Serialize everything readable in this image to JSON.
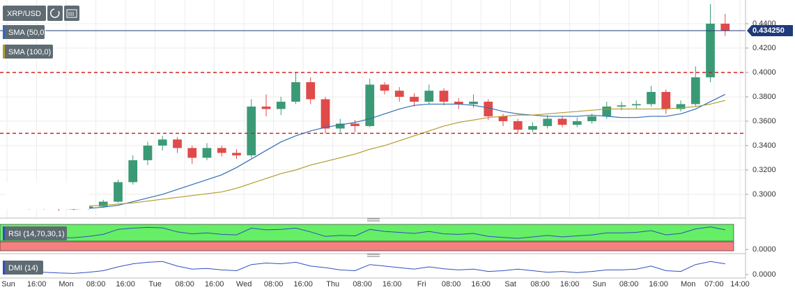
{
  "chart_data": [
    {
      "type": "candlestick",
      "title": "XRP/USD",
      "x": [
        10,
        14,
        18,
        22,
        26,
        30,
        34,
        38,
        42,
        46,
        50,
        54,
        58,
        62,
        66,
        70,
        74,
        78,
        82,
        86,
        90,
        94,
        98,
        102,
        106,
        110,
        114,
        118,
        122,
        126,
        130,
        134,
        138,
        142,
        146,
        150,
        154,
        158,
        162,
        166,
        170,
        174,
        178,
        182,
        186,
        190,
        194,
        198,
        202
      ],
      "open": [
        0.2905,
        0.29,
        0.289,
        0.2895,
        0.288,
        0.2885,
        0.29,
        0.294,
        0.31,
        0.328,
        0.34,
        0.345,
        0.338,
        0.33,
        0.338,
        0.334,
        0.332,
        0.372,
        0.37,
        0.376,
        0.392,
        0.378,
        0.354,
        0.358,
        0.356,
        0.39,
        0.385,
        0.38,
        0.376,
        0.385,
        0.376,
        0.374,
        0.376,
        0.364,
        0.36,
        0.353,
        0.356,
        0.362,
        0.357,
        0.36,
        0.364,
        0.372,
        0.373,
        0.374,
        0.384,
        0.37,
        0.374,
        0.396,
        0.44
      ],
      "high": [
        0.2925,
        0.2915,
        0.291,
        0.2905,
        0.29,
        0.2915,
        0.2955,
        0.312,
        0.332,
        0.343,
        0.348,
        0.347,
        0.34,
        0.342,
        0.34,
        0.337,
        0.378,
        0.382,
        0.38,
        0.4,
        0.396,
        0.38,
        0.362,
        0.361,
        0.395,
        0.392,
        0.388,
        0.383,
        0.39,
        0.387,
        0.379,
        0.382,
        0.378,
        0.366,
        0.362,
        0.359,
        0.365,
        0.364,
        0.363,
        0.366,
        0.376,
        0.376,
        0.377,
        0.389,
        0.386,
        0.377,
        0.405,
        0.456,
        0.448
      ],
      "low": [
        0.2885,
        0.2875,
        0.2875,
        0.2865,
        0.287,
        0.2875,
        0.289,
        0.293,
        0.308,
        0.324,
        0.336,
        0.334,
        0.325,
        0.328,
        0.331,
        0.329,
        0.33,
        0.364,
        0.365,
        0.374,
        0.374,
        0.35,
        0.351,
        0.351,
        0.355,
        0.382,
        0.376,
        0.372,
        0.374,
        0.373,
        0.37,
        0.371,
        0.361,
        0.356,
        0.35,
        0.351,
        0.354,
        0.355,
        0.355,
        0.358,
        0.362,
        0.369,
        0.37,
        0.372,
        0.366,
        0.368,
        0.372,
        0.392,
        0.43
      ],
      "close": [
        0.29,
        0.289,
        0.2895,
        0.288,
        0.2885,
        0.29,
        0.294,
        0.31,
        0.328,
        0.34,
        0.345,
        0.338,
        0.33,
        0.338,
        0.334,
        0.332,
        0.372,
        0.37,
        0.376,
        0.392,
        0.378,
        0.354,
        0.358,
        0.356,
        0.39,
        0.385,
        0.38,
        0.376,
        0.385,
        0.376,
        0.374,
        0.376,
        0.364,
        0.36,
        0.353,
        0.356,
        0.362,
        0.357,
        0.36,
        0.364,
        0.372,
        0.373,
        0.374,
        0.384,
        0.37,
        0.374,
        0.396,
        0.44,
        0.4342
      ],
      "up_color": "#3b9a76",
      "down_color": "#e04a4a",
      "series": [
        {
          "name": "SMA (50,0)",
          "color": "#2f6db5",
          "values": [
            0.29,
            0.2895,
            0.289,
            0.2885,
            0.288,
            0.2885,
            0.2895,
            0.291,
            0.294,
            0.297,
            0.3,
            0.304,
            0.308,
            0.312,
            0.316,
            0.322,
            0.329,
            0.336,
            0.343,
            0.348,
            0.352,
            0.355,
            0.357,
            0.359,
            0.362,
            0.366,
            0.37,
            0.373,
            0.374,
            0.374,
            0.374,
            0.373,
            0.371,
            0.368,
            0.366,
            0.365,
            0.364,
            0.364,
            0.364,
            0.365,
            0.364,
            0.363,
            0.363,
            0.364,
            0.364,
            0.366,
            0.37,
            0.376,
            0.382
          ]
        },
        {
          "name": "SMA (100,0)",
          "color": "#b39a2a",
          "values": [
            0.293,
            0.292,
            0.2915,
            0.291,
            0.2905,
            0.2905,
            0.291,
            0.292,
            0.293,
            0.2945,
            0.296,
            0.2975,
            0.299,
            0.3005,
            0.302,
            0.305,
            0.309,
            0.313,
            0.317,
            0.32,
            0.324,
            0.327,
            0.33,
            0.333,
            0.337,
            0.34,
            0.344,
            0.348,
            0.352,
            0.356,
            0.359,
            0.361,
            0.363,
            0.364,
            0.365,
            0.365,
            0.366,
            0.367,
            0.368,
            0.369,
            0.37,
            0.37,
            0.37,
            0.37,
            0.37,
            0.371,
            0.372,
            0.374,
            0.377
          ]
        }
      ],
      "levels": [
        0.4,
        0.35
      ],
      "level_color": "#d42020",
      "last_price": {
        "value": 0.43425,
        "label": "0.434250"
      },
      "last_color": "#1f3a7a",
      "xlim": [
        6.1,
        207.5
      ],
      "ylim": [
        0.2811,
        0.4594
      ],
      "grid": true,
      "yticks": [
        {
          "value": 0.3,
          "label": "0.3000"
        },
        {
          "value": 0.32,
          "label": "0.3200"
        },
        {
          "value": 0.34,
          "label": "0.3400"
        },
        {
          "value": 0.36,
          "label": "0.3600"
        },
        {
          "value": 0.38,
          "label": "0.3800"
        },
        {
          "value": 0.4,
          "label": "0.4000"
        },
        {
          "value": 0.42,
          "label": "0.4200"
        },
        {
          "value": 0.44,
          "label": "0.4400"
        }
      ],
      "xticks": [
        {
          "value": 8,
          "label": "Sun"
        },
        {
          "value": 16,
          "label": "16:00"
        },
        {
          "value": 24,
          "label": "Mon"
        },
        {
          "value": 32,
          "label": "08:00"
        },
        {
          "value": 40,
          "label": "16:00"
        },
        {
          "value": 48,
          "label": "Tue"
        },
        {
          "value": 56,
          "label": "08:00"
        },
        {
          "value": 64,
          "label": "16:00"
        },
        {
          "value": 72,
          "label": "Wed"
        },
        {
          "value": 80,
          "label": "08:00"
        },
        {
          "value": 88,
          "label": "16:00"
        },
        {
          "value": 96,
          "label": "Thu"
        },
        {
          "value": 104,
          "label": "08:00"
        },
        {
          "value": 112,
          "label": "16:00"
        },
        {
          "value": 120,
          "label": "Fri"
        },
        {
          "value": 128,
          "label": "08:00"
        },
        {
          "value": 136,
          "label": "16:00"
        },
        {
          "value": 144,
          "label": "Sat"
        },
        {
          "value": 152,
          "label": "08:00"
        },
        {
          "value": 160,
          "label": "16:00"
        },
        {
          "value": 168,
          "label": "Sun"
        },
        {
          "value": 176,
          "label": "08:00"
        },
        {
          "value": 184,
          "label": "16:00"
        },
        {
          "value": 192,
          "label": "Mon"
        },
        {
          "value": 199,
          "label": "07:00"
        },
        {
          "value": 206,
          "label": "14:00"
        }
      ]
    },
    {
      "type": "line",
      "title": "RSI (14,70,30,1)",
      "color": "#2f4fc0",
      "values": [
        55,
        50,
        48,
        45,
        47,
        52,
        60,
        80,
        85,
        88,
        86,
        70,
        62,
        66,
        60,
        58,
        85,
        78,
        80,
        85,
        70,
        52,
        56,
        54,
        80,
        72,
        68,
        64,
        72,
        62,
        60,
        64,
        52,
        48,
        44,
        50,
        56,
        50,
        54,
        58,
        66,
        66,
        68,
        75,
        58,
        64,
        82,
        90,
        78
      ],
      "ylim": [
        0,
        100
      ],
      "yticks": [
        {
          "value": 0,
          "label": "0.0000"
        }
      ]
    },
    {
      "type": "line",
      "title": "DMI (14)",
      "color": "#2f4fc0",
      "values": [
        5,
        8,
        6,
        4,
        3,
        6,
        10,
        20,
        28,
        32,
        34,
        22,
        14,
        16,
        12,
        10,
        26,
        30,
        28,
        32,
        22,
        18,
        12,
        10,
        26,
        22,
        18,
        14,
        20,
        15,
        12,
        14,
        8,
        10,
        14,
        10,
        6,
        8,
        5,
        8,
        12,
        12,
        14,
        22,
        10,
        8,
        26,
        34,
        28
      ],
      "ylim": [
        0,
        40
      ],
      "yticks": [
        {
          "value": 0,
          "label": "0.0000"
        }
      ]
    }
  ]
}
